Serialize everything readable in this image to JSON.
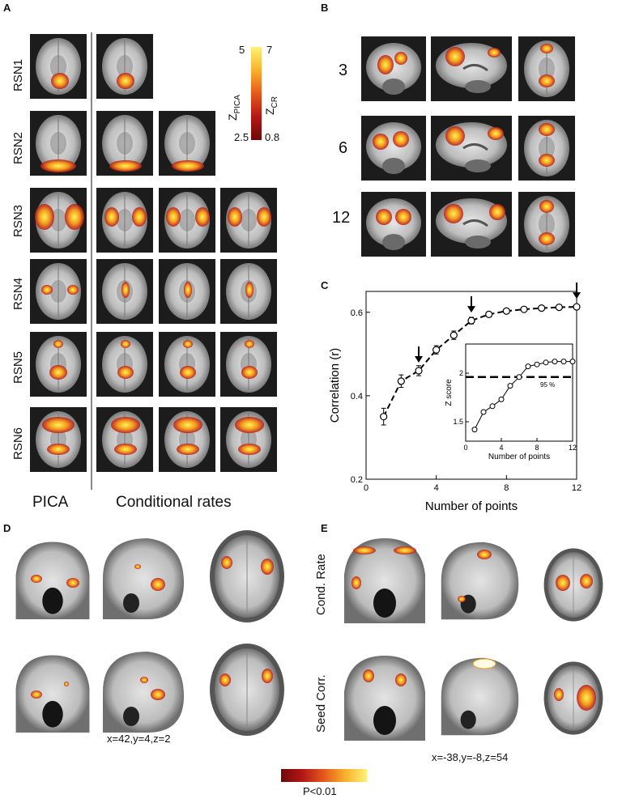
{
  "panels": {
    "A": {
      "letter": "A",
      "rows": [
        "RSN1",
        "RSN2",
        "RSN3",
        "RSN4",
        "RSN5",
        "RSN6"
      ],
      "footer_left": "PICA",
      "footer_right": "Conditional rates",
      "colorbar": {
        "label_left": "Z",
        "label_left_sub": "PICA",
        "label_right": "Z",
        "label_right_sub": "CR",
        "top_left": "5",
        "bottom_left": "2.5",
        "top_right": "7",
        "bottom_right": "0.8"
      }
    },
    "B": {
      "letter": "B",
      "rows": [
        "3",
        "6",
        "12"
      ]
    },
    "C": {
      "letter": "C",
      "inset_annotation": "95 %"
    },
    "D": {
      "letter": "D",
      "coords": "x=42,y=4,z=2"
    },
    "E": {
      "letter": "E",
      "row_top": "Cond. Rate",
      "row_bottom": "Seed Corr.",
      "coords": "x=-38,y=-8,z=54"
    },
    "colorbar_bottom": {
      "label": "P<0.01"
    }
  },
  "chart_data": [
    {
      "type": "scatter",
      "title": "",
      "xlabel": "Number of points",
      "ylabel": "Correlation (r)",
      "xlim": [
        0,
        12
      ],
      "ylim": [
        0.2,
        0.65
      ],
      "xticks": [
        "0",
        "4",
        "8",
        "12"
      ],
      "yticks": [
        "0.2",
        "0.4",
        "0.6"
      ],
      "series": [
        {
          "x": [
            1,
            2,
            3,
            4,
            5,
            6,
            7,
            8,
            9,
            10,
            11,
            12
          ],
          "y": [
            0.35,
            0.435,
            0.46,
            0.51,
            0.545,
            0.58,
            0.595,
            0.603,
            0.607,
            0.61,
            0.612,
            0.613
          ],
          "err": [
            0.02,
            0.015,
            0.012,
            0.01,
            0.01,
            0.008,
            0.006,
            0.005,
            0.005,
            0.005,
            0.005,
            0.005
          ]
        }
      ],
      "arrows_at_x": [
        3,
        6,
        12
      ]
    },
    {
      "type": "scatter",
      "title": "",
      "xlabel": "Number of points",
      "ylabel": "Z score",
      "xlim": [
        0,
        12
      ],
      "ylim": [
        1.3,
        2.3
      ],
      "xticks": [
        "0",
        "4",
        "8",
        "12"
      ],
      "yticks": [
        "1.5",
        "2"
      ],
      "threshold": 1.96,
      "series": [
        {
          "x": [
            1,
            2,
            3,
            4,
            5,
            6,
            7,
            8,
            9,
            10,
            11,
            12
          ],
          "y": [
            1.42,
            1.6,
            1.66,
            1.73,
            1.87,
            1.96,
            2.07,
            2.09,
            2.11,
            2.12,
            2.12,
            2.12
          ]
        }
      ]
    }
  ]
}
